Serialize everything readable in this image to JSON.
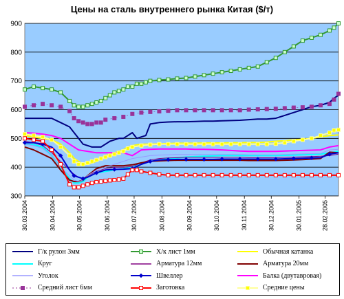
{
  "chart_data": {
    "type": "line",
    "title": "Цены на сталь внутреннего рынка Китая ($/т)",
    "xlabel": "",
    "ylabel": "",
    "ylim": [
      300,
      900
    ],
    "y_ticks": [
      "300",
      "400",
      "500",
      "600",
      "700",
      "800",
      "900"
    ],
    "x_ticks": [
      "30.03.2004",
      "30.04.2004",
      "30.05.2004",
      "30.06.2004",
      "30.07.2004",
      "30.08.2004",
      "30.09.2004",
      "30.10.2004",
      "30.11.2004",
      "30.12.2004",
      "30.01.2005",
      "28.02.2005"
    ],
    "x_tick_positions": [
      0,
      31,
      61,
      92,
      122,
      153,
      184,
      214,
      245,
      275,
      306,
      335
    ],
    "x_range": [
      0,
      350
    ],
    "grid": "horizontal",
    "plot_background": "#99ccff",
    "legend_position": "bottom",
    "series": [
      {
        "name": "Г/к рулон 3мм",
        "color": "#000080",
        "marker": "none",
        "width": 2,
        "x": [
          0,
          10,
          20,
          30,
          40,
          50,
          55,
          60,
          65,
          75,
          80,
          85,
          90,
          95,
          100,
          105,
          110,
          115,
          120,
          125,
          130,
          135,
          140,
          150,
          160,
          170,
          180,
          190,
          200,
          210,
          220,
          230,
          240,
          250,
          260,
          270,
          280,
          290,
          300,
          310,
          320,
          330,
          340,
          345,
          350
        ],
        "y": [
          570,
          570,
          570,
          570,
          555,
          540,
          520,
          500,
          480,
          470,
          470,
          470,
          480,
          490,
          495,
          500,
          500,
          510,
          520,
          500,
          505,
          510,
          550,
          555,
          557,
          558,
          558,
          559,
          560,
          560,
          561,
          562,
          563,
          565,
          567,
          567,
          570,
          580,
          590,
          600,
          610,
          615,
          625,
          640,
          650
        ]
      },
      {
        "name": "Х/к лист 1мм",
        "color": "#339933",
        "marker": "square",
        "width": 2,
        "x": [
          0,
          10,
          20,
          30,
          40,
          50,
          55,
          60,
          65,
          70,
          75,
          80,
          85,
          90,
          95,
          100,
          105,
          110,
          115,
          120,
          125,
          130,
          135,
          140,
          150,
          160,
          170,
          180,
          190,
          200,
          210,
          220,
          230,
          240,
          250,
          260,
          270,
          280,
          290,
          300,
          310,
          320,
          330,
          340,
          345,
          350
        ],
        "y": [
          670,
          680,
          675,
          670,
          660,
          630,
          615,
          610,
          610,
          615,
          620,
          625,
          630,
          640,
          650,
          660,
          665,
          670,
          680,
          680,
          690,
          690,
          695,
          700,
          703,
          705,
          708,
          710,
          715,
          720,
          725,
          730,
          735,
          740,
          745,
          750,
          765,
          780,
          800,
          820,
          840,
          850,
          860,
          875,
          885,
          900
        ]
      },
      {
        "name": "Обычная катанка",
        "color": "#ffff00",
        "marker": "none",
        "width": 2,
        "x": [
          0,
          10,
          20,
          30,
          40,
          50,
          55,
          60,
          65,
          70,
          75,
          80,
          85,
          90,
          95,
          100,
          105,
          110,
          115,
          120,
          130,
          140,
          150,
          160,
          170,
          180,
          190,
          200,
          210,
          220,
          230,
          240,
          250,
          260,
          270,
          280,
          290,
          300,
          310,
          320,
          330,
          340,
          350
        ],
        "y": [
          510,
          505,
          500,
          495,
          480,
          450,
          430,
          420,
          410,
          410,
          415,
          420,
          430,
          440,
          445,
          450,
          455,
          460,
          470,
          475,
          480,
          480,
          481,
          482,
          483,
          483,
          483,
          484,
          484,
          484,
          485,
          485,
          486,
          486,
          487,
          490,
          492,
          495,
          497,
          500,
          505,
          510,
          512
        ]
      },
      {
        "name": "Круг",
        "color": "#00ffff",
        "marker": "none",
        "width": 2,
        "x": [
          0,
          10,
          20,
          30,
          40,
          50,
          55,
          60,
          65,
          70,
          80,
          90,
          100,
          110,
          120,
          130,
          140,
          150,
          160,
          170,
          180,
          190,
          200,
          210,
          220,
          230,
          240,
          250,
          260,
          270,
          280,
          290,
          300,
          310,
          320,
          330,
          340,
          350
        ],
        "y": [
          480,
          478,
          470,
          440,
          400,
          360,
          345,
          345,
          350,
          365,
          380,
          385,
          390,
          395,
          400,
          410,
          420,
          425,
          430,
          432,
          435,
          437,
          438,
          439,
          440,
          440,
          440,
          440,
          440,
          440,
          440,
          441,
          442,
          443,
          444,
          445,
          450,
          455
        ]
      },
      {
        "name": "Арматура 12мм",
        "color": "#800080",
        "marker": "none",
        "width": 1,
        "x": [
          0,
          10,
          20,
          30,
          40,
          50,
          55,
          60,
          65,
          70,
          80,
          90,
          100,
          110,
          120,
          130,
          140,
          150,
          160,
          170,
          180,
          190,
          200,
          210,
          220,
          230,
          240,
          250,
          260,
          270,
          280,
          290,
          300,
          310,
          320,
          330,
          340,
          350
        ],
        "y": [
          490,
          485,
          475,
          450,
          420,
          390,
          375,
          365,
          360,
          370,
          385,
          395,
          400,
          400,
          402,
          415,
          425,
          430,
          432,
          433,
          434,
          434,
          434,
          434,
          434,
          434,
          434,
          433,
          433,
          433,
          433,
          434,
          435,
          436,
          437,
          438,
          440,
          445
        ]
      },
      {
        "name": "Арматура 20мм",
        "color": "#800000",
        "marker": "none",
        "width": 2,
        "x": [
          0,
          10,
          20,
          30,
          40,
          50,
          55,
          60,
          65,
          70,
          80,
          90,
          100,
          110,
          120,
          130,
          140,
          150,
          160,
          170,
          180,
          190,
          200,
          210,
          220,
          230,
          240,
          250,
          260,
          270,
          280,
          290,
          300,
          310,
          320,
          330,
          340,
          350
        ],
        "y": [
          470,
          460,
          445,
          430,
          390,
          355,
          350,
          350,
          355,
          370,
          395,
          405,
          405,
          405,
          408,
          415,
          420,
          422,
          423,
          424,
          424,
          424,
          424,
          424,
          424,
          424,
          424,
          423,
          423,
          423,
          423,
          424,
          425,
          426,
          428,
          430,
          452,
          450
        ]
      },
      {
        "name": "Уголок",
        "color": "#9999ff",
        "marker": "none",
        "width": 1,
        "x": [
          0,
          10,
          20,
          30,
          40,
          50,
          55,
          60,
          65,
          70,
          80,
          90,
          100,
          110,
          120,
          130,
          140,
          150,
          160,
          170,
          180,
          190,
          200,
          210,
          220,
          230,
          240,
          250,
          260,
          270,
          280,
          290,
          300,
          310,
          320,
          330,
          340,
          350
        ],
        "y": [
          480,
          475,
          465,
          440,
          400,
          370,
          355,
          350,
          355,
          370,
          390,
          400,
          410,
          420,
          430,
          435,
          440,
          442,
          443,
          444,
          444,
          444,
          444,
          444,
          444,
          444,
          444,
          443,
          443,
          443,
          443,
          444,
          445,
          446,
          447,
          448,
          460,
          462
        ]
      },
      {
        "name": "Швеллер",
        "color": "#0000cc",
        "marker": "diamond",
        "width": 2,
        "x": [
          0,
          10,
          20,
          30,
          40,
          50,
          55,
          60,
          65,
          70,
          80,
          90,
          100,
          110,
          120,
          130,
          140,
          150,
          160,
          170,
          180,
          190,
          200,
          210,
          220,
          230,
          240,
          250,
          260,
          270,
          280,
          290,
          300,
          310,
          320,
          330,
          340,
          350
        ],
        "y": [
          485,
          485,
          480,
          470,
          440,
          390,
          370,
          365,
          360,
          365,
          380,
          390,
          392,
          393,
          395,
          410,
          420,
          425,
          426,
          427,
          427,
          427,
          427,
          427,
          428,
          428,
          428,
          428,
          428,
          428,
          428,
          429,
          430,
          431,
          432,
          433,
          445,
          450
        ]
      },
      {
        "name": "Балка (двутавровая)",
        "color": "#ff00ff",
        "marker": "none",
        "width": 2,
        "x": [
          0,
          10,
          20,
          30,
          40,
          50,
          60,
          70,
          80,
          90,
          100,
          110,
          115,
          120,
          125,
          130,
          140,
          150,
          160,
          170,
          180,
          190,
          200,
          210,
          220,
          230,
          240,
          250,
          260,
          270,
          280,
          290,
          300,
          310,
          320,
          330,
          340,
          350
        ],
        "y": [
          520,
          518,
          515,
          510,
          500,
          480,
          460,
          455,
          450,
          450,
          450,
          450,
          445,
          440,
          450,
          460,
          462,
          463,
          463,
          463,
          463,
          462,
          462,
          461,
          460,
          458,
          456,
          455,
          455,
          455,
          455,
          456,
          457,
          458,
          459,
          460,
          470,
          475
        ]
      },
      {
        "name": "Средний лист 6мм",
        "color": "#993399",
        "marker": "square",
        "width": 1,
        "dash": "2,6",
        "x": [
          0,
          10,
          20,
          30,
          40,
          50,
          55,
          60,
          65,
          70,
          75,
          80,
          85,
          90,
          100,
          110,
          120,
          130,
          140,
          150,
          160,
          170,
          180,
          190,
          200,
          210,
          220,
          230,
          240,
          250,
          260,
          270,
          280,
          290,
          300,
          310,
          320,
          330,
          340,
          345,
          350
        ],
        "y": [
          610,
          615,
          620,
          615,
          610,
          595,
          570,
          560,
          555,
          550,
          550,
          555,
          555,
          565,
          570,
          575,
          585,
          590,
          592,
          594,
          596,
          598,
          598,
          598,
          598,
          598,
          598,
          598,
          598,
          600,
          601,
          602,
          603,
          605,
          607,
          608,
          610,
          615,
          620,
          635,
          655
        ]
      },
      {
        "name": "Заготовка",
        "color": "#ff0000",
        "marker": "square",
        "width": 2,
        "x": [
          0,
          10,
          20,
          30,
          40,
          50,
          55,
          60,
          65,
          70,
          75,
          80,
          85,
          90,
          95,
          100,
          105,
          110,
          115,
          120,
          125,
          130,
          140,
          150,
          160,
          170,
          180,
          190,
          200,
          210,
          220,
          230,
          240,
          250,
          260,
          270,
          280,
          290,
          300,
          310,
          320,
          330,
          340,
          350
        ],
        "y": [
          500,
          495,
          490,
          460,
          410,
          340,
          330,
          330,
          335,
          340,
          345,
          348,
          350,
          352,
          354,
          355,
          357,
          360,
          375,
          390,
          390,
          385,
          380,
          375,
          372,
          372,
          372,
          372,
          372,
          372,
          372,
          372,
          372,
          372,
          372,
          372,
          372,
          372,
          372,
          372,
          372,
          372,
          372,
          372
        ]
      },
      {
        "name": "Средние цены",
        "color": "#ffff99",
        "marker": "square",
        "width": 2,
        "x": [
          0,
          10,
          20,
          30,
          40,
          50,
          55,
          60,
          65,
          70,
          75,
          80,
          85,
          90,
          95,
          100,
          105,
          110,
          115,
          120,
          130,
          140,
          150,
          160,
          170,
          180,
          190,
          200,
          210,
          220,
          230,
          240,
          250,
          260,
          270,
          280,
          290,
          300,
          310,
          320,
          330,
          340,
          345,
          350
        ],
        "y": [
          515,
          510,
          505,
          495,
          470,
          440,
          420,
          410,
          410,
          415,
          420,
          425,
          430,
          435,
          440,
          445,
          450,
          455,
          465,
          470,
          475,
          478,
          480,
          480,
          480,
          480,
          480,
          480,
          480,
          480,
          480,
          480,
          480,
          480,
          480,
          481,
          485,
          490,
          495,
          500,
          510,
          520,
          528,
          530
        ]
      }
    ]
  }
}
